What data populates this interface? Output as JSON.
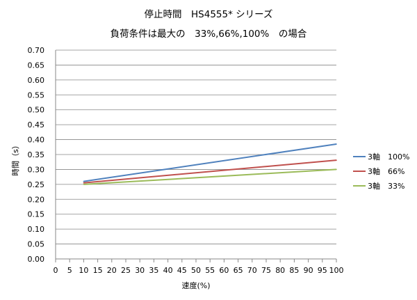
{
  "chart_data": {
    "type": "line",
    "title": "停止時間　HS4555* シリーズ",
    "subtitle": "負荷条件は最大の　33%,66%,100%　の場合",
    "xlabel": "速度(%)",
    "ylabel": "時間（s）",
    "x_ticks": [
      "0",
      "5",
      "10",
      "15",
      "20",
      "25",
      "30",
      "35",
      "40",
      "45",
      "50",
      "55",
      "60",
      "65",
      "70",
      "75",
      "80",
      "85",
      "90",
      "95",
      "100"
    ],
    "y_ticks": [
      "0.00",
      "0.05",
      "0.10",
      "0.15",
      "0.20",
      "0.25",
      "0.30",
      "0.35",
      "0.40",
      "0.45",
      "0.50",
      "0.55",
      "0.60",
      "0.65",
      "0.70"
    ],
    "xlim": [
      0,
      100
    ],
    "ylim": [
      0,
      0.7
    ],
    "grid": "horizontal",
    "legend_position": "right",
    "series": [
      {
        "name": "3軸　100%",
        "color": "#4f81bd",
        "x": [
          10,
          100
        ],
        "y": [
          0.26,
          0.385
        ]
      },
      {
        "name": "3軸　66%",
        "color": "#c0504d",
        "x": [
          10,
          100
        ],
        "y": [
          0.255,
          0.331
        ]
      },
      {
        "name": "3軸　33%",
        "color": "#9bbb59",
        "x": [
          10,
          100
        ],
        "y": [
          0.25,
          0.3
        ]
      }
    ]
  }
}
